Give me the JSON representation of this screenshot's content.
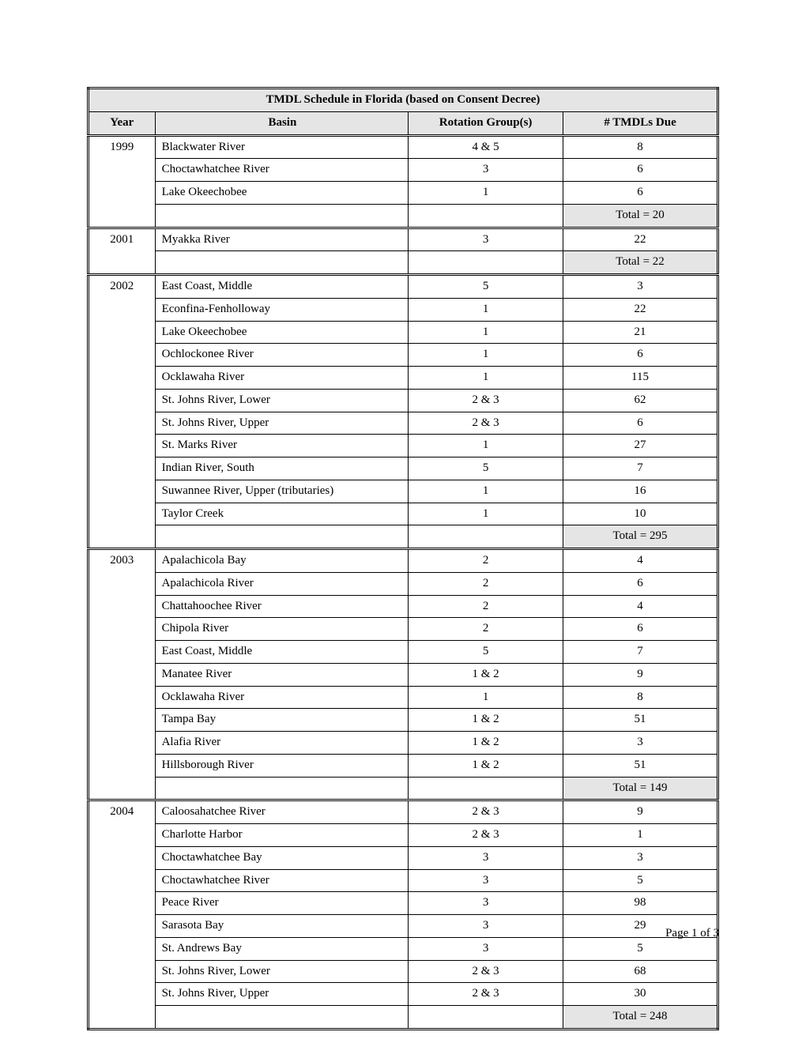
{
  "table": {
    "title": "TMDL Schedule in Florida (based on Consent Decree)",
    "columns": [
      "Year",
      "Basin",
      "Rotation Group(s)",
      "# TMDLs Due"
    ],
    "groups": [
      {
        "year": "1999",
        "rows": [
          {
            "basin": "Blackwater River",
            "rot": "4 & 5",
            "due": "8"
          },
          {
            "basin": "Choctawhatchee River",
            "rot": "3",
            "due": "6"
          },
          {
            "basin": "Lake Okeechobee",
            "rot": "1",
            "due": "6"
          }
        ],
        "total": "Total = 20"
      },
      {
        "year": "2001",
        "rows": [
          {
            "basin": "Myakka River",
            "rot": "3",
            "due": "22"
          }
        ],
        "total": "Total = 22"
      },
      {
        "year": "2002",
        "rows": [
          {
            "basin": "East Coast, Middle",
            "rot": "5",
            "due": "3"
          },
          {
            "basin": "Econfina-Fenholloway",
            "rot": "1",
            "due": "22"
          },
          {
            "basin": "Lake Okeechobee",
            "rot": "1",
            "due": "21"
          },
          {
            "basin": "Ochlockonee River",
            "rot": "1",
            "due": "6"
          },
          {
            "basin": "Ocklawaha River",
            "rot": "1",
            "due": "115"
          },
          {
            "basin": "St. Johns River, Lower",
            "rot": "2 & 3",
            "due": "62"
          },
          {
            "basin": "St. Johns River, Upper",
            "rot": "2 & 3",
            "due": "6"
          },
          {
            "basin": "St. Marks River",
            "rot": "1",
            "due": "27"
          },
          {
            "basin": "Indian River, South",
            "rot": "5",
            "due": "7"
          },
          {
            "basin": "Suwannee River, Upper (tributaries)",
            "rot": "1",
            "due": "16"
          },
          {
            "basin": "Taylor Creek",
            "rot": "1",
            "due": "10"
          }
        ],
        "total": "Total = 295"
      },
      {
        "year": "2003",
        "rows": [
          {
            "basin": "Apalachicola Bay",
            "rot": "2",
            "due": "4"
          },
          {
            "basin": "Apalachicola River",
            "rot": "2",
            "due": "6"
          },
          {
            "basin": "Chattahoochee River",
            "rot": "2",
            "due": "4"
          },
          {
            "basin": "Chipola River",
            "rot": "2",
            "due": "6"
          },
          {
            "basin": "East Coast, Middle",
            "rot": "5",
            "due": "7"
          },
          {
            "basin": "Manatee River",
            "rot": "1 & 2",
            "due": "9"
          },
          {
            "basin": "Ocklawaha River",
            "rot": "1",
            "due": "8"
          },
          {
            "basin": "Tampa Bay",
            "rot": "1 & 2",
            "due": "51"
          },
          {
            "basin": "Alafia River",
            "rot": "1 & 2",
            "due": "3"
          },
          {
            "basin": "Hillsborough River",
            "rot": "1 & 2",
            "due": "51"
          }
        ],
        "total": "Total = 149"
      },
      {
        "year": "2004",
        "rows": [
          {
            "basin": "Caloosahatchee River",
            "rot": "2 & 3",
            "due": "9"
          },
          {
            "basin": "Charlotte Harbor",
            "rot": "2 & 3",
            "due": "1"
          },
          {
            "basin": "Choctawhatchee Bay",
            "rot": "3",
            "due": "3"
          },
          {
            "basin": "Choctawhatchee River",
            "rot": "3",
            "due": "5"
          },
          {
            "basin": "Peace River",
            "rot": "3",
            "due": "98"
          },
          {
            "basin": "Sarasota Bay",
            "rot": "3",
            "due": "29"
          },
          {
            "basin": "St. Andrews Bay",
            "rot": "3",
            "due": "5"
          },
          {
            "basin": "St. Johns River, Lower",
            "rot": "2 & 3",
            "due": "68"
          },
          {
            "basin": "St. Johns River, Upper",
            "rot": "2 & 3",
            "due": "30"
          }
        ],
        "total": "Total = 248"
      }
    ]
  },
  "footer": "Page 1 of 3"
}
